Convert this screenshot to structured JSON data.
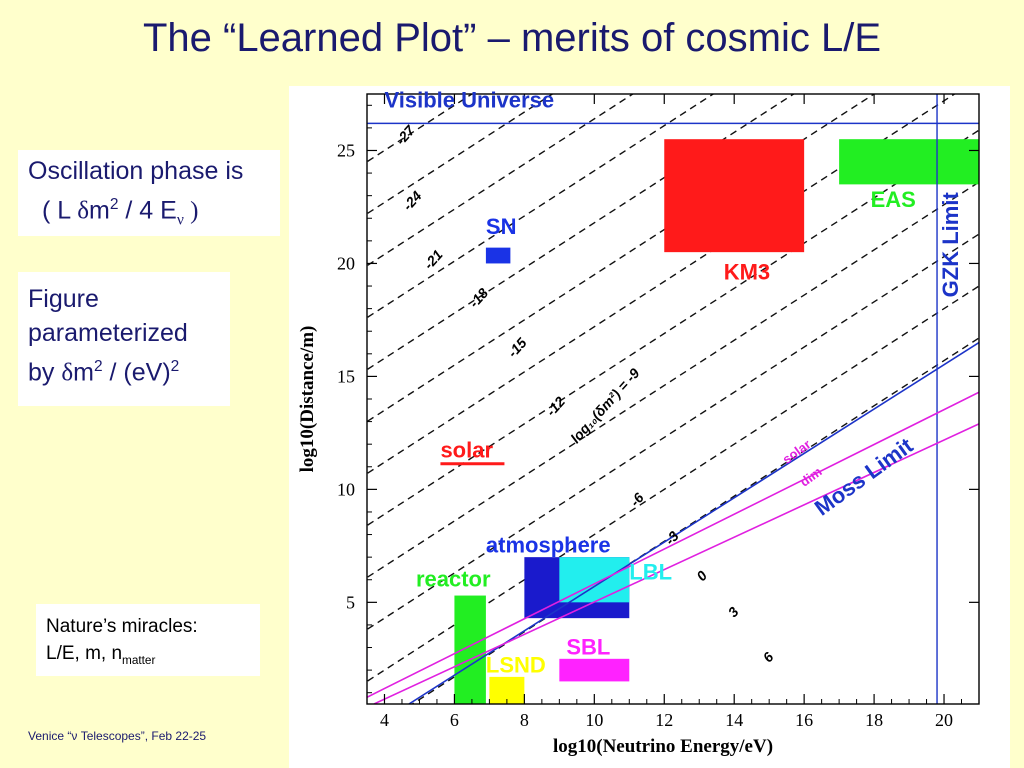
{
  "slide": {
    "title": "The “Learned Plot” – merits of cosmic L/E",
    "footer": "Venice “ν Telescopes”, Feb 22-25"
  },
  "boxes": {
    "phase_line1": "Oscillation phase is",
    "phase_open": "( L ",
    "phase_delta": "δ",
    "phase_m": "m",
    "phase_sup": "2",
    "phase_rest": " / 4 E",
    "phase_nu": "ν",
    "phase_close": " )",
    "param_line1": "Figure",
    "param_line2": "parameterized",
    "param_by": "by ",
    "param_delta": "δ",
    "param_m": "m",
    "param_sup1": "2",
    "param_rest": " / (eV)",
    "param_sup2": "2",
    "nature_line1": "Nature’s miracles:",
    "nature_line2": "L/E, m, n",
    "nature_sub": "matter"
  },
  "chart_data": {
    "type": "scatter",
    "xlabel": "log10(Neutrino Energy/eV)",
    "ylabel": "log10(Distance/m)",
    "xlim": [
      3.5,
      21
    ],
    "ylim": [
      0.5,
      27.5
    ],
    "xticks": [
      4,
      6,
      8,
      10,
      12,
      14,
      16,
      18,
      20
    ],
    "yticks": [
      5,
      10,
      15,
      20,
      25
    ],
    "dashed_lines": {
      "values": [
        -27,
        -24,
        -21,
        -18,
        -15,
        -12,
        -9,
        -6,
        -3,
        0,
        3,
        6
      ],
      "labels": [
        {
          "text": "-27",
          "x": 4.5,
          "y": 25.2
        },
        {
          "text": "-24",
          "x": 4.7,
          "y": 22.3
        },
        {
          "text": "-21",
          "x": 5.3,
          "y": 19.7
        },
        {
          "text": "-18",
          "x": 6.6,
          "y": 18.0
        },
        {
          "text": "-15",
          "x": 7.7,
          "y": 15.8
        },
        {
          "text": "-12",
          "x": 8.8,
          "y": 13.2
        },
        {
          "text": "log₁₀(δm²) = -9",
          "x": 9.5,
          "y": 12.0
        },
        {
          "text": "-6",
          "x": 11.2,
          "y": 9.2
        },
        {
          "text": "-3",
          "x": 12.2,
          "y": 7.5
        },
        {
          "text": "0",
          "x": 13.1,
          "y": 5.9
        },
        {
          "text": "3",
          "x": 14.0,
          "y": 4.3
        },
        {
          "text": "6",
          "x": 15.0,
          "y": 2.3
        }
      ]
    },
    "lines": [
      {
        "name": "Visible Universe",
        "kind": "horizontal",
        "y": 26.2,
        "color": "#1c34c8",
        "label_x": 4.0,
        "label_y": 26.9
      },
      {
        "name": "GZK Limit",
        "kind": "vertical",
        "x": 19.8,
        "color": "#1c34c8",
        "label_x": 20.4,
        "label_y": 18.5
      },
      {
        "name": "Moss Limit",
        "kind": "diagonal",
        "points": [
          [
            4.7,
            0.5
          ],
          [
            21,
            16.5
          ]
        ],
        "color": "#1c34c8",
        "label_x": 16.5,
        "label_y": 8.8
      },
      {
        "name": "solar",
        "kind": "diagonal",
        "points": [
          [
            3.5,
            0.8
          ],
          [
            21,
            14.3
          ]
        ],
        "color": "#e020e0",
        "label_x": 15.5,
        "label_y": 11.1
      },
      {
        "name": "dim",
        "kind": "diagonal",
        "points": [
          [
            3.7,
            0.5
          ],
          [
            21,
            12.9
          ]
        ],
        "color": "#e020e0",
        "label_x": 16.0,
        "label_y": 10.1
      }
    ],
    "regions": [
      {
        "name": "EAS",
        "x": [
          17,
          21
        ],
        "y": [
          23.5,
          25.5
        ],
        "color": "#22ee22",
        "label_x": 17.9,
        "label_y": 22.5,
        "label_color": "#22ee22"
      },
      {
        "name": "KM3",
        "x": [
          12,
          16
        ],
        "y": [
          20.5,
          25.5
        ],
        "color": "#ff1a1a",
        "label_x": 13.7,
        "label_y": 19.3,
        "label_color": "#ff1a1a"
      },
      {
        "name": "SN",
        "x": [
          6.9,
          7.6
        ],
        "y": [
          20.0,
          20.7
        ],
        "color": "#1a33e6",
        "label_x": 6.9,
        "label_y": 21.3,
        "label_color": "#1a33e6"
      },
      {
        "name": "solar",
        "x": [],
        "y": [],
        "color": "#ff1a1a",
        "label_x": 5.6,
        "label_y": 11.4,
        "label_color": "#ff1a1a",
        "underline": true
      },
      {
        "name": "atmosphere",
        "x": [
          8.0,
          11.0
        ],
        "y": [
          4.3,
          7.0
        ],
        "color": "#1a1acc",
        "label_x": 6.9,
        "label_y": 7.2,
        "label_color": "#1a33e6"
      },
      {
        "name": "LBL",
        "x": [
          9.0,
          11.0
        ],
        "y": [
          5.0,
          7.0
        ],
        "color": "#22eeee",
        "label_x": 11.0,
        "label_y": 6.0,
        "label_color": "#22eeee"
      },
      {
        "name": "reactor",
        "x": [
          6.0,
          6.9
        ],
        "y": [
          0.5,
          5.3
        ],
        "color": "#22ee22",
        "label_x": 4.9,
        "label_y": 5.7,
        "label_color": "#22ee22"
      },
      {
        "name": "LSND",
        "x": [
          7.0,
          8.0
        ],
        "y": [
          0.5,
          1.7
        ],
        "color": "#ffff00",
        "label_x": 6.9,
        "label_y": 1.9,
        "label_color": "#ffff00"
      },
      {
        "name": "SBL",
        "x": [
          9.0,
          11.0
        ],
        "y": [
          1.5,
          2.5
        ],
        "color": "#ff22ff",
        "label_x": 9.2,
        "label_y": 2.7,
        "label_color": "#ff22ff"
      }
    ]
  }
}
